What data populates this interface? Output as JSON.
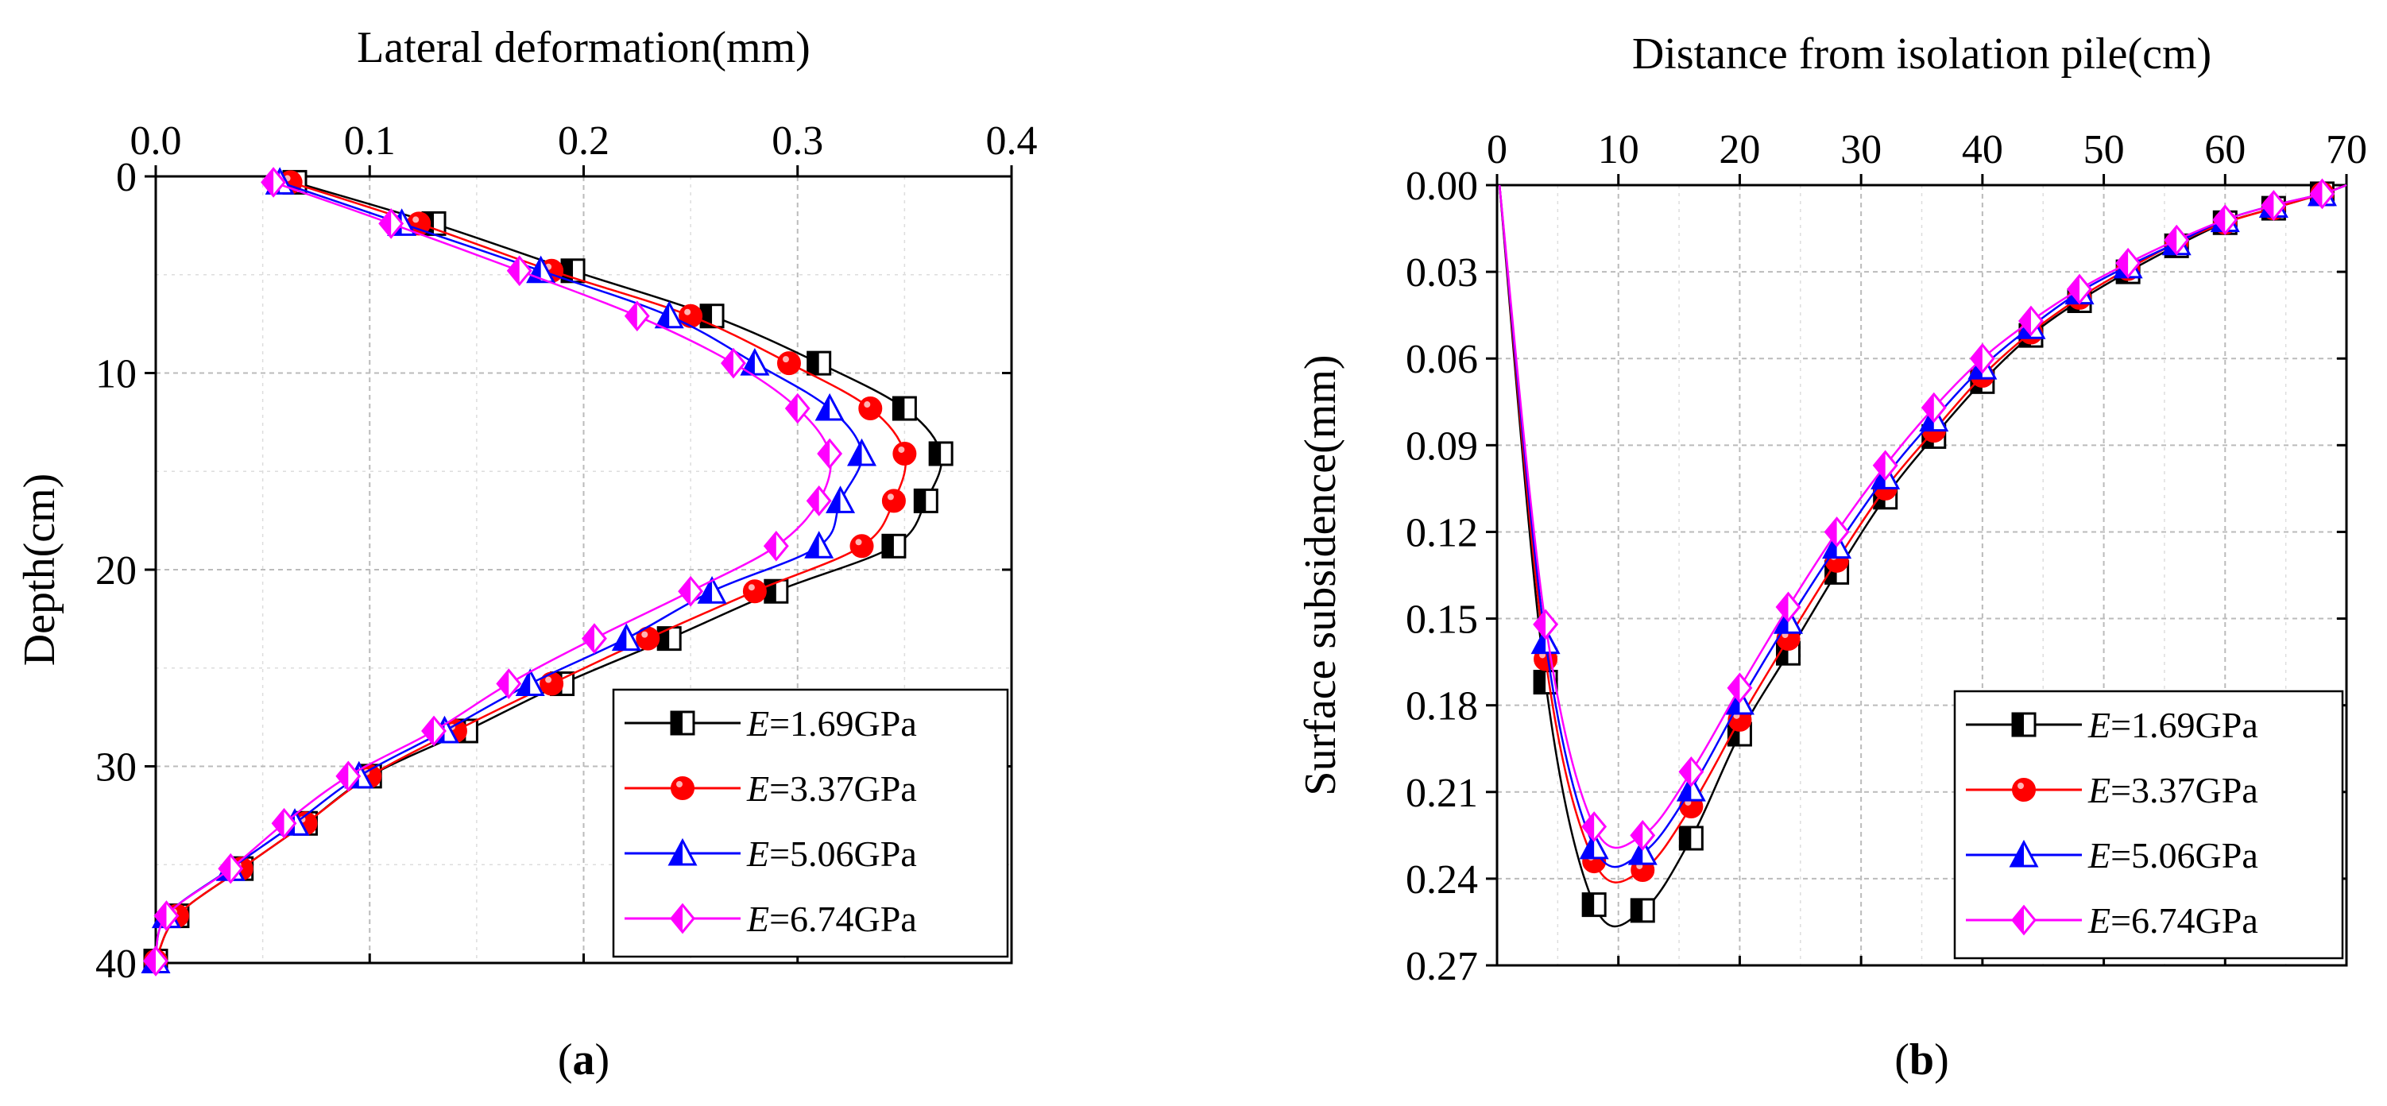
{
  "chart_data": [
    {
      "type": "line",
      "panel_label": "a",
      "title": "",
      "xlabel": "Lateral deformation(mm)",
      "ylabel": "Depth(cm)",
      "xlim": [
        0,
        0.4
      ],
      "ylim": [
        40,
        0
      ],
      "x_axis_position": "top",
      "y_inverted": true,
      "xticks": [
        "0.0",
        "0.1",
        "0.2",
        "0.3",
        "0.4"
      ],
      "yticks": [
        "0",
        "10",
        "20",
        "30",
        "40"
      ],
      "grid": true,
      "legend_position": "bottom-right",
      "series": [
        {
          "name": "E=1.69GPa",
          "legend_prefix": "E",
          "legend_suffix": "=1.69GPa",
          "color": "#000000",
          "marker": "half-square",
          "x": [
            0.065,
            0.13,
            0.195,
            0.26,
            0.31,
            0.35,
            0.367,
            0.36,
            0.345,
            0.29,
            0.24,
            0.19,
            0.145,
            0.1,
            0.07,
            0.04,
            0.01,
            0.0
          ],
          "y": [
            0.3,
            2.4,
            4.8,
            7.1,
            9.5,
            11.8,
            14.1,
            16.5,
            18.8,
            21.1,
            23.5,
            25.8,
            28.2,
            30.5,
            32.9,
            35.2,
            37.6,
            39.9
          ]
        },
        {
          "name": "E=3.37GPa",
          "legend_prefix": "E",
          "legend_suffix": "=3.37GPa",
          "color": "#ff0000",
          "marker": "sphere",
          "x": [
            0.063,
            0.123,
            0.185,
            0.25,
            0.296,
            0.334,
            0.35,
            0.345,
            0.33,
            0.28,
            0.23,
            0.185,
            0.14,
            0.1,
            0.07,
            0.04,
            0.01,
            0.0
          ],
          "y": [
            0.3,
            2.4,
            4.8,
            7.1,
            9.5,
            11.8,
            14.1,
            16.5,
            18.8,
            21.1,
            23.5,
            25.8,
            28.2,
            30.5,
            32.9,
            35.2,
            37.6,
            39.9
          ]
        },
        {
          "name": "E=5.06GPa",
          "legend_prefix": "E",
          "legend_suffix": "=5.06GPa",
          "color": "#0000ff",
          "marker": "half-triangle",
          "x": [
            0.058,
            0.115,
            0.18,
            0.24,
            0.28,
            0.315,
            0.33,
            0.32,
            0.31,
            0.26,
            0.22,
            0.175,
            0.135,
            0.095,
            0.065,
            0.035,
            0.005,
            0.0
          ],
          "y": [
            0.3,
            2.4,
            4.8,
            7.1,
            9.5,
            11.8,
            14.1,
            16.5,
            18.8,
            21.1,
            23.5,
            25.8,
            28.2,
            30.5,
            32.9,
            35.2,
            37.6,
            39.9
          ]
        },
        {
          "name": "E=6.74GPa",
          "legend_prefix": "E",
          "legend_suffix": "=6.74GPa",
          "color": "#ff00ff",
          "marker": "half-diamond",
          "x": [
            0.055,
            0.11,
            0.17,
            0.225,
            0.27,
            0.3,
            0.315,
            0.31,
            0.29,
            0.25,
            0.205,
            0.165,
            0.13,
            0.09,
            0.06,
            0.035,
            0.005,
            0.0
          ],
          "y": [
            0.3,
            2.4,
            4.8,
            7.1,
            9.5,
            11.8,
            14.1,
            16.5,
            18.8,
            21.1,
            23.5,
            25.8,
            28.2,
            30.5,
            32.9,
            35.2,
            37.6,
            39.9
          ]
        }
      ]
    },
    {
      "type": "line",
      "panel_label": "b",
      "title": "",
      "xlabel": "Distance from isolation pile(cm)",
      "ylabel": "Surface subsidence(mm)",
      "xlim": [
        0,
        70
      ],
      "ylim": [
        0.27,
        0
      ],
      "x_axis_position": "top",
      "y_inverted": true,
      "xticks": [
        "0",
        "10",
        "20",
        "30",
        "40",
        "50",
        "60",
        "70"
      ],
      "yticks": [
        "0.00",
        "0.03",
        "0.06",
        "0.09",
        "0.12",
        "0.15",
        "0.18",
        "0.21",
        "0.24",
        "0.27"
      ],
      "grid": true,
      "legend_position": "bottom-right",
      "series": [
        {
          "name": "E=1.69GPa",
          "legend_prefix": "E",
          "legend_suffix": "=1.69GPa",
          "color": "#000000",
          "marker": "half-square",
          "x": [
            0.2,
            4,
            8,
            12,
            16,
            20,
            24,
            28,
            32,
            36,
            40,
            44,
            48,
            52,
            56,
            60,
            64,
            68,
            70
          ],
          "y": [
            0.0,
            0.172,
            0.249,
            0.251,
            0.226,
            0.19,
            0.162,
            0.134,
            0.108,
            0.087,
            0.068,
            0.052,
            0.04,
            0.03,
            0.021,
            0.013,
            0.008,
            0.003,
            0.0
          ]
        },
        {
          "name": "E=3.37GPa",
          "legend_prefix": "E",
          "legend_suffix": "=3.37GPa",
          "color": "#ff0000",
          "marker": "sphere",
          "x": [
            0.2,
            4,
            8,
            12,
            16,
            20,
            24,
            28,
            32,
            36,
            40,
            44,
            48,
            52,
            56,
            60,
            64,
            68,
            70
          ],
          "y": [
            0.0,
            0.164,
            0.234,
            0.237,
            0.215,
            0.185,
            0.157,
            0.13,
            0.105,
            0.085,
            0.066,
            0.051,
            0.039,
            0.029,
            0.02,
            0.013,
            0.008,
            0.003,
            0.0
          ]
        },
        {
          "name": "E=5.06GPa",
          "legend_prefix": "E",
          "legend_suffix": "=5.06GPa",
          "color": "#0000ff",
          "marker": "half-triangle",
          "x": [
            0.2,
            4,
            8,
            12,
            16,
            20,
            24,
            28,
            32,
            36,
            40,
            44,
            48,
            52,
            56,
            60,
            64,
            68,
            70
          ],
          "y": [
            0.0,
            0.158,
            0.229,
            0.231,
            0.209,
            0.179,
            0.151,
            0.125,
            0.101,
            0.081,
            0.063,
            0.049,
            0.037,
            0.028,
            0.02,
            0.012,
            0.007,
            0.003,
            0.0
          ]
        },
        {
          "name": "E=6.74GPa",
          "legend_prefix": "E",
          "legend_suffix": "=6.74GPa",
          "color": "#ff00ff",
          "marker": "half-diamond",
          "x": [
            0.2,
            4,
            8,
            12,
            16,
            20,
            24,
            28,
            32,
            36,
            40,
            44,
            48,
            52,
            56,
            60,
            64,
            68,
            70
          ],
          "y": [
            0.0,
            0.152,
            0.222,
            0.225,
            0.203,
            0.174,
            0.146,
            0.12,
            0.097,
            0.077,
            0.06,
            0.047,
            0.036,
            0.027,
            0.019,
            0.012,
            0.007,
            0.003,
            0.0
          ]
        }
      ]
    }
  ]
}
